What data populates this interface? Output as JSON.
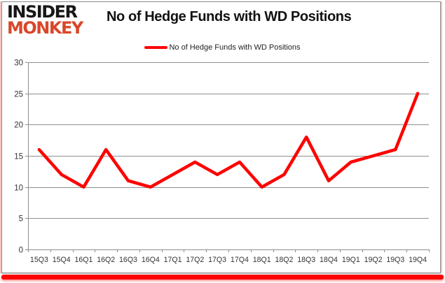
{
  "logo": {
    "line1": "INSIDER",
    "line2": "MONKEY"
  },
  "header": {
    "title": "No of Hedge Funds with WD Positions"
  },
  "legend": {
    "label": "No of Hedge Funds with WD Positions"
  },
  "colors": {
    "line": "#fe0000",
    "logo_accent": "#d9472b",
    "logo_dark": "#171717",
    "grid": "#8e8e8e",
    "axis_text": "#333333",
    "accent_bar": "#fb0301"
  },
  "chart_data": {
    "type": "line",
    "title": "No of Hedge Funds with WD Positions",
    "categories": [
      "15Q3",
      "15Q4",
      "16Q1",
      "16Q2",
      "16Q3",
      "16Q4",
      "17Q1",
      "17Q2",
      "17Q3",
      "17Q4",
      "18Q1",
      "18Q2",
      "18Q3",
      "18Q4",
      "19Q1",
      "19Q2",
      "19Q3",
      "19Q4"
    ],
    "series": [
      {
        "name": "No of Hedge Funds with WD Positions",
        "values": [
          16,
          12,
          10,
          16,
          11,
          10,
          12,
          14,
          12,
          14,
          10,
          12,
          18,
          11,
          14,
          15,
          16,
          25
        ]
      }
    ],
    "xlabel": "",
    "ylabel": "",
    "ylim": [
      0,
      30
    ],
    "yticks": [
      0,
      5,
      10,
      15,
      20,
      25,
      30
    ],
    "grid": true,
    "legend_position": "top-center"
  }
}
